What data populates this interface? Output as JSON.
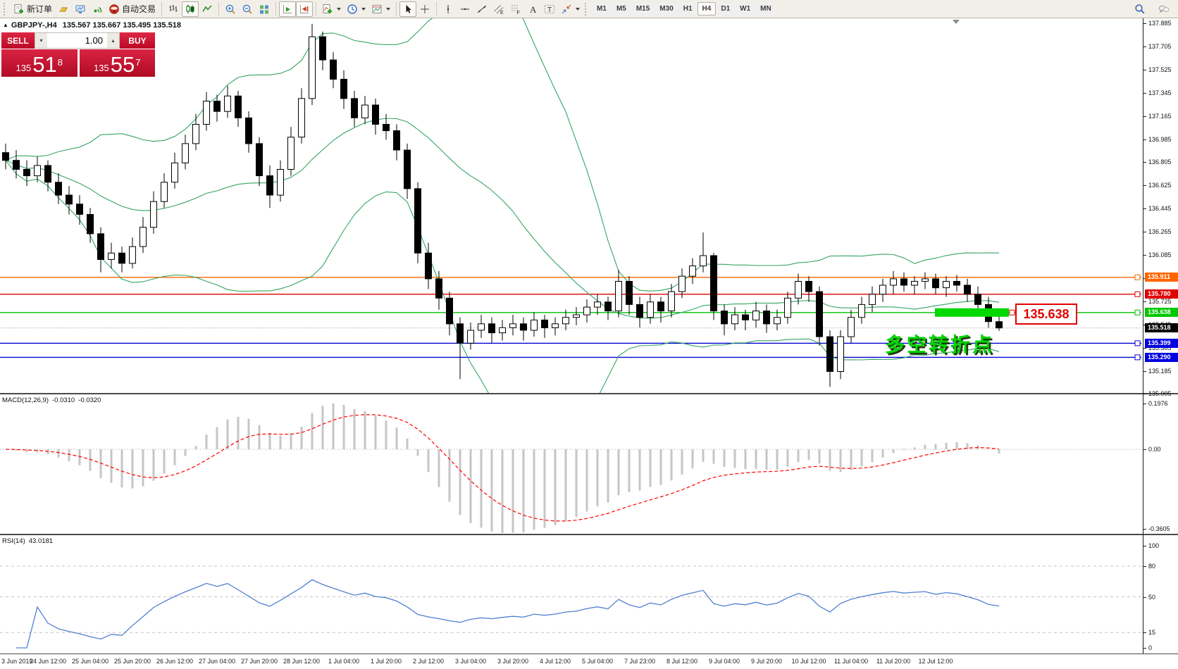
{
  "toolbar": {
    "groups": [
      {
        "items": [
          {
            "icon": "new-order",
            "label": "新订单",
            "name": "new-order-button"
          },
          {
            "icon": "gold",
            "name": "market-watch-button"
          },
          {
            "icon": "upload",
            "name": "publish-chart-button"
          },
          {
            "icon": "signal",
            "name": "signals-button"
          },
          {
            "icon": "autotrade",
            "label": "自动交易",
            "name": "autotrading-button"
          }
        ]
      },
      {
        "items": [
          {
            "icon": "bars",
            "name": "bar-chart-button"
          },
          {
            "icon": "candles",
            "name": "candlestick-chart-button",
            "active": true
          },
          {
            "icon": "line",
            "name": "line-chart-button"
          }
        ]
      },
      {
        "items": [
          {
            "icon": "zoom-in",
            "name": "zoom-in-button"
          },
          {
            "icon": "zoom-out",
            "name": "zoom-out-button"
          },
          {
            "icon": "tiles",
            "name": "tile-windows-button"
          }
        ]
      },
      {
        "items": [
          {
            "icon": "autoscroll",
            "name": "auto-scroll-button",
            "active": true
          },
          {
            "icon": "shift",
            "name": "chart-shift-button",
            "active": true
          }
        ]
      },
      {
        "items": [
          {
            "icon": "indicators",
            "name": "indicators-button",
            "dd": true
          },
          {
            "icon": "clock",
            "name": "periods-button",
            "dd": true
          },
          {
            "icon": "template",
            "name": "templates-button",
            "dd": true
          }
        ]
      },
      {
        "items": [
          {
            "icon": "cursor",
            "name": "cursor-button",
            "active": true
          },
          {
            "icon": "crosshair",
            "name": "crosshair-button"
          }
        ]
      },
      {
        "items": [
          {
            "icon": "vline",
            "name": "vertical-line-button"
          },
          {
            "icon": "hline",
            "name": "horizontal-line-button"
          },
          {
            "icon": "trend",
            "name": "trendline-button"
          },
          {
            "icon": "channel",
            "name": "equidistant-channel-button"
          },
          {
            "icon": "fibo",
            "name": "fibonacci-button"
          },
          {
            "icon": "text",
            "name": "text-button"
          },
          {
            "icon": "label",
            "name": "text-label-button"
          },
          {
            "icon": "arrows",
            "name": "arrows-button",
            "dd": true
          }
        ]
      }
    ],
    "timeframes": [
      {
        "label": "M1"
      },
      {
        "label": "M5"
      },
      {
        "label": "M15"
      },
      {
        "label": "M30"
      },
      {
        "label": "H1"
      },
      {
        "label": "H4",
        "active": true
      },
      {
        "label": "D1"
      },
      {
        "label": "W1"
      },
      {
        "label": "MN"
      }
    ],
    "right_icons": [
      {
        "icon": "search",
        "name": "search-button"
      },
      {
        "icon": "chat",
        "name": "chat-button"
      }
    ]
  },
  "header": {
    "symbol": "GBPJPY-,H4",
    "ohlc": "135.567 135.667 135.495 135.518"
  },
  "trade": {
    "sell_label": "SELL",
    "buy_label": "BUY",
    "volume": "1.00",
    "sell_small": "135",
    "sell_big": "51",
    "sell_sup": "8",
    "buy_small": "135",
    "buy_big": "55",
    "buy_sup": "7"
  },
  "chart": {
    "price_axis": {
      "max": 137.885,
      "min": 135.005,
      "step": 0.18
    },
    "levels": [
      {
        "price": 135.911,
        "label": "135.911",
        "color": "#ff6600",
        "badge": "#ff6600"
      },
      {
        "price": 135.78,
        "label": "135.780",
        "color": "#dd0000",
        "badge": "#e00000"
      },
      {
        "price": 135.638,
        "label": "135.638",
        "color": "#00c000",
        "badge": "#00c800"
      },
      {
        "price": 135.399,
        "label": "135.399",
        "color": "#0000d0",
        "badge": "#0000e0"
      },
      {
        "price": 135.29,
        "label": "135.290",
        "color": "#0000d0",
        "badge": "#0000e0"
      }
    ],
    "bid": {
      "price": 135.518,
      "label": "135.518",
      "badge": "#000000"
    },
    "highlight": {
      "price": 135.638,
      "color": "#00d800"
    },
    "price_callout": {
      "text": "135.638",
      "color": "#e00000"
    },
    "annotation": {
      "text": "多空转折点",
      "color": "#00d400"
    },
    "x_labels": [
      "3 Jun 2019",
      "24 Jun 12:00",
      "25 Jun 04:00",
      "25 Jun 20:00",
      "26 Jun 12:00",
      "27 Jun 04:00",
      "27 Jun 20:00",
      "28 Jun 12:00",
      "1 Jul 04:00",
      "1 Jul 20:00",
      "2 Jul 12:00",
      "3 Jul 04:00",
      "3 Jul 20:00",
      "4 Jul 12:00",
      "5 Jul 04:00",
      "7 Jul 23:00",
      "8 Jul 12:00",
      "9 Jul 04:00",
      "9 Jul 20:00",
      "10 Jul 12:00",
      "11 Jul 04:00",
      "11 Jul 20:00",
      "12 Jul 12:00"
    ]
  },
  "macd": {
    "name": "MACD(12,26,9)",
    "value_main": "-0.0310",
    "value_signal": "-0.0320",
    "axis_labels": [
      "0.1976",
      "0.00",
      "-0.3605"
    ],
    "histogram_color": "#c6c6c6",
    "signal_color": "#ff0000"
  },
  "rsi": {
    "name": "RSI(14)",
    "value": "43.0181",
    "axis_labels": [
      "100",
      "80",
      "50",
      "15",
      "0"
    ],
    "line_color": "#4f81d0",
    "levels": [
      80,
      50,
      15
    ]
  },
  "chart_data": {
    "type": "candlestick",
    "symbol": "GBPJPY-",
    "timeframe": "H4",
    "indicators": [
      {
        "type": "bollinger",
        "period": 20,
        "deviation": 2,
        "color": "#35a563"
      },
      {
        "type": "macd",
        "fast": 12,
        "slow": 26,
        "signal": 9,
        "main": -0.031,
        "signal_value": -0.032,
        "max": 0.1976,
        "min": -0.3605
      },
      {
        "type": "rsi",
        "period": 14,
        "value": 43.0181
      }
    ],
    "candles": [
      [
        136.88,
        136.95,
        136.75,
        136.82
      ],
      [
        136.82,
        136.9,
        136.68,
        136.75
      ],
      [
        136.75,
        136.82,
        136.62,
        136.7
      ],
      [
        136.7,
        136.85,
        136.65,
        136.78
      ],
      [
        136.78,
        136.82,
        136.58,
        136.65
      ],
      [
        136.65,
        136.72,
        136.48,
        136.55
      ],
      [
        136.55,
        136.62,
        136.4,
        136.48
      ],
      [
        136.48,
        136.55,
        136.32,
        136.4
      ],
      [
        136.4,
        136.45,
        136.18,
        136.25
      ],
      [
        136.25,
        136.3,
        135.95,
        136.05
      ],
      [
        136.05,
        136.18,
        135.98,
        136.1
      ],
      [
        136.1,
        136.15,
        135.95,
        136.02
      ],
      [
        136.02,
        136.22,
        135.98,
        136.15
      ],
      [
        136.15,
        136.38,
        136.1,
        136.3
      ],
      [
        136.3,
        136.58,
        136.25,
        136.5
      ],
      [
        136.5,
        136.72,
        136.45,
        136.65
      ],
      [
        136.65,
        136.88,
        136.6,
        136.8
      ],
      [
        136.8,
        137.02,
        136.75,
        136.95
      ],
      [
        136.95,
        137.18,
        136.9,
        137.1
      ],
      [
        137.1,
        137.35,
        137.05,
        137.28
      ],
      [
        137.28,
        137.33,
        137.12,
        137.2
      ],
      [
        137.2,
        137.4,
        137.15,
        137.32
      ],
      [
        137.32,
        137.36,
        137.08,
        137.15
      ],
      [
        137.15,
        137.2,
        136.88,
        136.95
      ],
      [
        136.95,
        137.0,
        136.62,
        136.7
      ],
      [
        136.7,
        136.78,
        136.45,
        136.55
      ],
      [
        136.55,
        136.82,
        136.5,
        136.75
      ],
      [
        136.75,
        137.08,
        136.7,
        137.0
      ],
      [
        137.0,
        137.38,
        136.95,
        137.3
      ],
      [
        137.3,
        137.88,
        137.25,
        137.78
      ],
      [
        137.78,
        137.82,
        137.52,
        137.6
      ],
      [
        137.6,
        137.66,
        137.38,
        137.45
      ],
      [
        137.45,
        137.52,
        137.22,
        137.3
      ],
      [
        137.3,
        137.36,
        137.08,
        137.15
      ],
      [
        137.15,
        137.32,
        137.1,
        137.25
      ],
      [
        137.25,
        137.3,
        137.02,
        137.1
      ],
      [
        137.1,
        137.18,
        136.98,
        137.05
      ],
      [
        137.05,
        137.1,
        136.82,
        136.9
      ],
      [
        136.9,
        136.95,
        136.52,
        136.6
      ],
      [
        136.6,
        136.65,
        136.02,
        136.1
      ],
      [
        136.1,
        136.18,
        135.82,
        135.9
      ],
      [
        135.9,
        135.96,
        135.66,
        135.75
      ],
      [
        135.75,
        135.8,
        135.46,
        135.55
      ],
      [
        135.55,
        135.6,
        135.12,
        135.4
      ],
      [
        135.4,
        135.56,
        135.35,
        135.5
      ],
      [
        135.5,
        135.62,
        135.44,
        135.55
      ],
      [
        135.55,
        135.6,
        135.4,
        135.48
      ],
      [
        135.48,
        135.58,
        135.42,
        135.52
      ],
      [
        135.52,
        135.62,
        135.46,
        135.55
      ],
      [
        135.55,
        135.6,
        135.42,
        135.5
      ],
      [
        135.5,
        135.64,
        135.45,
        135.58
      ],
      [
        135.58,
        135.62,
        135.44,
        135.52
      ],
      [
        135.52,
        135.6,
        135.46,
        135.55
      ],
      [
        135.55,
        135.66,
        135.5,
        135.6
      ],
      [
        135.6,
        135.68,
        135.54,
        135.62
      ],
      [
        135.62,
        135.74,
        135.56,
        135.68
      ],
      [
        135.68,
        135.78,
        135.62,
        135.72
      ],
      [
        135.72,
        135.76,
        135.58,
        135.65
      ],
      [
        135.65,
        135.97,
        135.6,
        135.88
      ],
      [
        135.88,
        135.92,
        135.62,
        135.7
      ],
      [
        135.7,
        135.76,
        135.52,
        135.6
      ],
      [
        135.6,
        135.78,
        135.55,
        135.72
      ],
      [
        135.72,
        135.76,
        135.56,
        135.65
      ],
      [
        135.65,
        135.86,
        135.6,
        135.8
      ],
      [
        135.8,
        135.98,
        135.75,
        135.92
      ],
      [
        135.92,
        136.06,
        135.86,
        136.0
      ],
      [
        136.0,
        136.26,
        135.95,
        136.08
      ],
      [
        136.08,
        136.1,
        135.58,
        135.65
      ],
      [
        135.65,
        135.7,
        135.46,
        135.55
      ],
      [
        135.55,
        135.68,
        135.5,
        135.62
      ],
      [
        135.62,
        135.66,
        135.5,
        135.58
      ],
      [
        135.58,
        135.72,
        135.52,
        135.65
      ],
      [
        135.65,
        135.7,
        135.48,
        135.55
      ],
      [
        135.55,
        135.66,
        135.5,
        135.6
      ],
      [
        135.6,
        135.8,
        135.55,
        135.75
      ],
      [
        135.75,
        135.94,
        135.7,
        135.88
      ],
      [
        135.88,
        135.92,
        135.72,
        135.8
      ],
      [
        135.8,
        135.84,
        135.38,
        135.45
      ],
      [
        135.45,
        135.5,
        135.06,
        135.18
      ],
      [
        135.18,
        135.5,
        135.12,
        135.45
      ],
      [
        135.45,
        135.66,
        135.4,
        135.6
      ],
      [
        135.6,
        135.76,
        135.55,
        135.7
      ],
      [
        135.7,
        135.84,
        135.64,
        135.78
      ],
      [
        135.78,
        135.9,
        135.72,
        135.85
      ],
      [
        135.85,
        135.96,
        135.78,
        135.9
      ],
      [
        135.9,
        135.95,
        135.8,
        135.85
      ],
      [
        135.85,
        135.92,
        135.78,
        135.88
      ],
      [
        135.88,
        135.95,
        135.82,
        135.9
      ],
      [
        135.9,
        135.94,
        135.78,
        135.83
      ],
      [
        135.83,
        135.92,
        135.76,
        135.88
      ],
      [
        135.88,
        135.93,
        135.8,
        135.85
      ],
      [
        135.85,
        135.9,
        135.72,
        135.78
      ],
      [
        135.78,
        135.84,
        135.66,
        135.7
      ],
      [
        135.7,
        135.76,
        135.52,
        135.567
      ],
      [
        135.567,
        135.667,
        135.495,
        135.518
      ]
    ]
  }
}
